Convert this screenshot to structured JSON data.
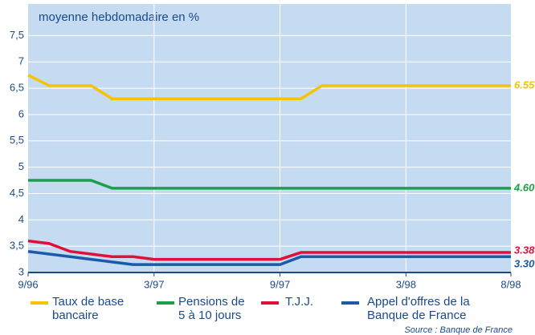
{
  "chart_data": {
    "type": "line",
    "title": "moyenne hebdomadaire  en %",
    "source": "Source : Banque de France",
    "categories": [
      "9/96",
      null,
      null,
      null,
      null,
      null,
      "3/97",
      null,
      null,
      null,
      null,
      null,
      "9/97",
      null,
      null,
      null,
      null,
      null,
      "3/98",
      null,
      null,
      null,
      null,
      "8/98"
    ],
    "ylim": [
      3,
      8.1
    ],
    "yticks": [
      3,
      {
        "value": 3.5,
        "label": "3,5"
      },
      4,
      {
        "value": 4.5,
        "label": "4,5"
      },
      5,
      {
        "value": 5.5,
        "label": "5,5"
      },
      6,
      {
        "value": 6.5,
        "label": "6,5"
      },
      7,
      {
        "value": 7.5,
        "label": "7,5"
      }
    ],
    "grid": true,
    "series": [
      {
        "name": "Taux de base bancaire",
        "color": "#f5c400",
        "values": [
          6.75,
          6.55,
          6.55,
          6.55,
          6.3,
          6.3,
          6.3,
          6.3,
          6.3,
          6.3,
          6.3,
          6.3,
          6.3,
          6.3,
          6.55,
          6.55,
          6.55,
          6.55,
          6.55,
          6.55,
          6.55,
          6.55,
          6.55,
          6.55
        ],
        "value_labels": [
          null,
          null,
          null,
          null,
          null,
          null,
          null,
          null,
          null,
          null,
          null,
          null,
          null,
          null,
          null,
          null,
          null,
          null,
          null,
          null,
          null,
          null,
          null,
          "6.55"
        ]
      },
      {
        "name": "Pensions de 5 à 10 jours",
        "color": "#1aa04a",
        "values": [
          4.75,
          4.75,
          4.75,
          4.75,
          4.6,
          4.6,
          4.6,
          4.6,
          4.6,
          4.6,
          4.6,
          4.6,
          4.6,
          4.6,
          4.6,
          4.6,
          4.6,
          4.6,
          4.6,
          4.6,
          4.6,
          4.6,
          4.6,
          4.6
        ],
        "value_labels": [
          null,
          null,
          null,
          null,
          null,
          null,
          null,
          null,
          null,
          null,
          null,
          null,
          null,
          null,
          null,
          null,
          null,
          null,
          null,
          null,
          null,
          null,
          null,
          "4.60"
        ]
      },
      {
        "name": "T.J.J.",
        "color": "#e0103a",
        "values": [
          3.6,
          3.55,
          3.4,
          3.35,
          3.3,
          3.3,
          3.25,
          3.25,
          3.25,
          3.25,
          3.25,
          3.25,
          3.25,
          3.38,
          3.38,
          3.38,
          3.38,
          3.38,
          3.38,
          3.38,
          3.38,
          3.38,
          3.38,
          3.38
        ],
        "value_labels": [
          null,
          null,
          null,
          null,
          null,
          null,
          null,
          null,
          null,
          null,
          null,
          null,
          null,
          null,
          null,
          null,
          null,
          null,
          null,
          null,
          null,
          null,
          null,
          "3.38"
        ]
      },
      {
        "name": "Appel d'offres de la Banque de France",
        "color": "#1a5aa8",
        "values": [
          3.4,
          3.35,
          3.3,
          3.25,
          3.2,
          3.15,
          3.15,
          3.15,
          3.15,
          3.15,
          3.15,
          3.15,
          3.15,
          3.3,
          3.3,
          3.3,
          3.3,
          3.3,
          3.3,
          3.3,
          3.3,
          3.3,
          3.3,
          3.3
        ],
        "value_labels": [
          null,
          null,
          null,
          null,
          null,
          null,
          null,
          null,
          null,
          null,
          null,
          null,
          null,
          null,
          null,
          null,
          null,
          null,
          null,
          null,
          null,
          null,
          null,
          "3.30"
        ]
      }
    ]
  }
}
